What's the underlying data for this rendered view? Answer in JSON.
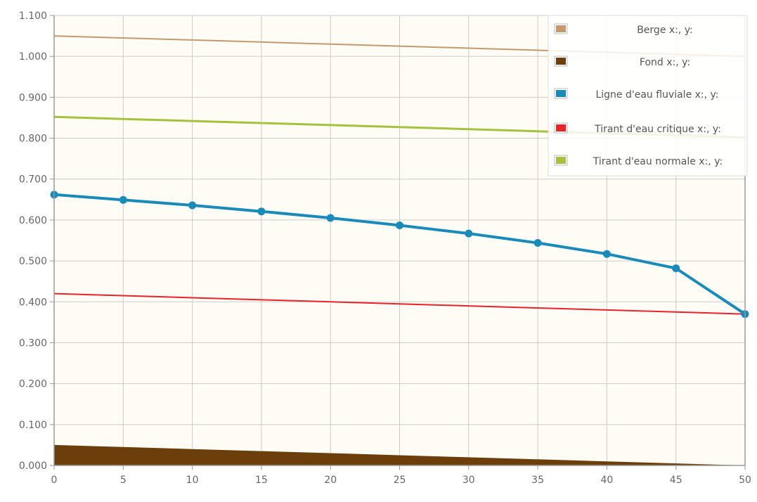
{
  "chart_data": {
    "type": "line",
    "x": [
      0,
      5,
      10,
      15,
      20,
      25,
      30,
      35,
      40,
      45,
      50
    ],
    "xlim": [
      0,
      50
    ],
    "ylim": [
      0,
      1.1
    ],
    "x_ticks": [
      "0",
      "5",
      "10",
      "15",
      "20",
      "25",
      "30",
      "35",
      "40",
      "45",
      "50"
    ],
    "y_ticks": [
      "0.000",
      "0.100",
      "0.200",
      "0.300",
      "0.400",
      "0.500",
      "0.600",
      "0.700",
      "0.800",
      "0.900",
      "1.000",
      "1.100"
    ],
    "y_tick_values": [
      0,
      0.1,
      0.2,
      0.3,
      0.4,
      0.5,
      0.6,
      0.7,
      0.8,
      0.9,
      1.0,
      1.1
    ],
    "grid": true,
    "legend_position": "top-right",
    "series": [
      {
        "name": "Berge x:, y:",
        "color": "#c49a6c",
        "style": "line",
        "markers": false,
        "values": [
          1.05,
          1.045,
          1.04,
          1.035,
          1.03,
          1.025,
          1.02,
          1.015,
          1.01,
          1.005,
          1.0
        ]
      },
      {
        "name": "Fond x:, y:",
        "color": "#6b3e0c",
        "style": "area",
        "markers": false,
        "values": [
          0.05,
          0.045,
          0.04,
          0.035,
          0.03,
          0.025,
          0.02,
          0.015,
          0.01,
          0.005,
          0.0
        ]
      },
      {
        "name": "Ligne d'eau fluviale x:, y:",
        "color": "#1a8bb9",
        "style": "line",
        "markers": true,
        "values": [
          0.662,
          0.649,
          0.636,
          0.621,
          0.605,
          0.587,
          0.567,
          0.544,
          0.517,
          0.482,
          0.37
        ]
      },
      {
        "name": "Tirant d'eau critique x:, y:",
        "color": "#e8232a",
        "style": "line",
        "markers": false,
        "values": [
          0.42,
          0.415,
          0.41,
          0.405,
          0.4,
          0.395,
          0.39,
          0.385,
          0.38,
          0.375,
          0.37
        ]
      },
      {
        "name": "Tirant d'eau normale x:, y:",
        "color": "#a4c23e",
        "style": "line",
        "markers": false,
        "values": [
          0.852,
          0.847,
          0.842,
          0.837,
          0.832,
          0.827,
          0.822,
          0.817,
          0.812,
          0.807,
          0.802
        ]
      }
    ]
  },
  "colors": {
    "plot_background": "#fefcf5",
    "grid": "#cccccc",
    "axis": "#999999",
    "legend_background": "#ffffff"
  }
}
